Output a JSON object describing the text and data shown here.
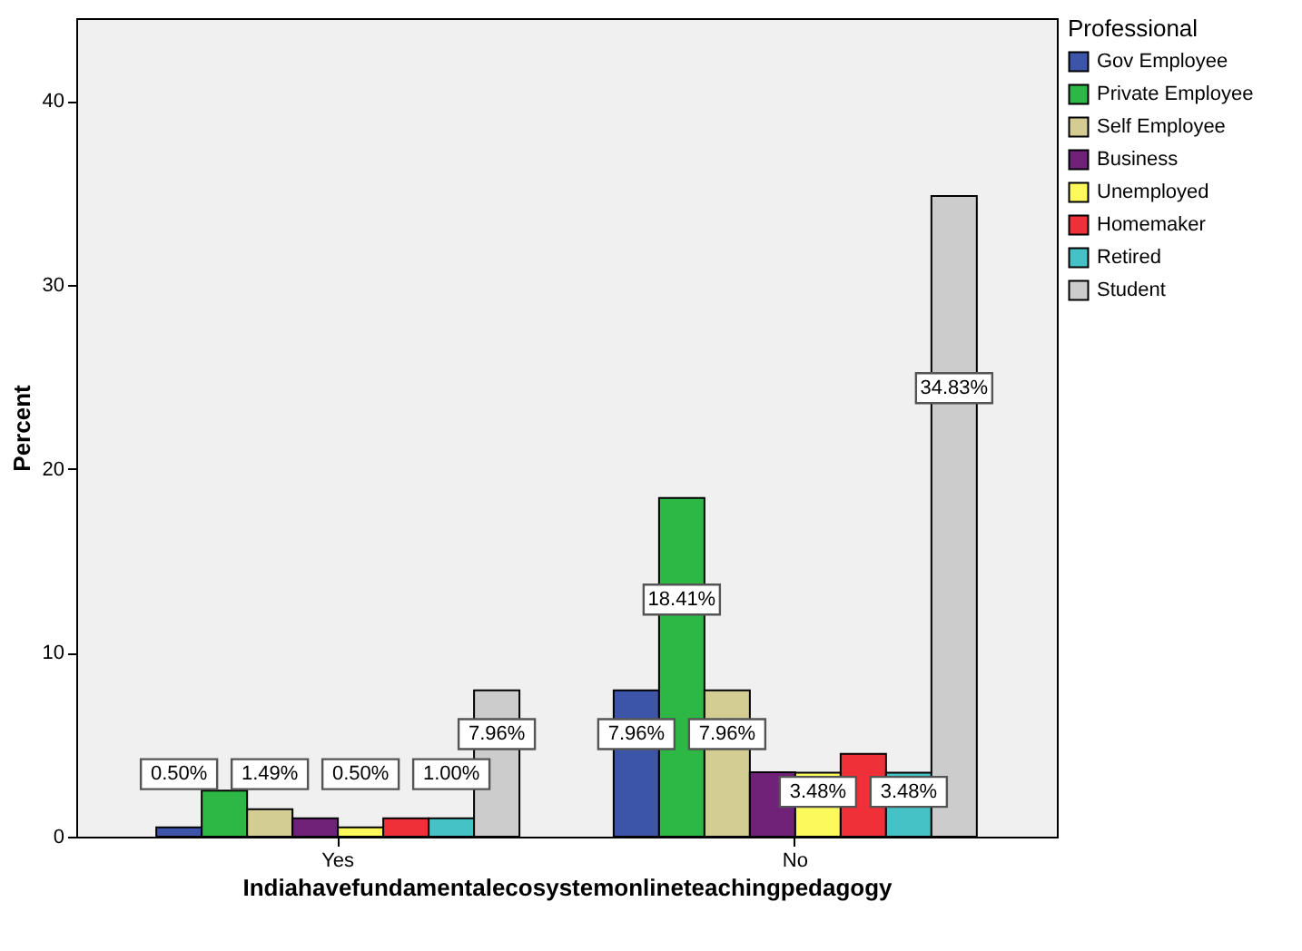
{
  "chart_data": {
    "type": "bar",
    "xlabel": "Indiahavefundamentalecosystemonlineteachingpedagogy",
    "ylabel": "Percent",
    "legend_title": "Professional",
    "categories": [
      "Yes",
      "No"
    ],
    "series": [
      {
        "name": "Gov  Employee",
        "color": "#3d55a8",
        "values": [
          0.5,
          7.96
        ],
        "value_labels": [
          "0.50%",
          "7.96%"
        ]
      },
      {
        "name": "Private Employee",
        "color": "#2db745",
        "values": [
          2.5,
          18.41
        ],
        "value_labels": [
          null,
          "18.41%"
        ]
      },
      {
        "name": "Self Employee",
        "color": "#d3cd94",
        "values": [
          1.49,
          7.96
        ],
        "value_labels": [
          "1.49%",
          "7.96%"
        ]
      },
      {
        "name": "Business",
        "color": "#6f2277",
        "values": [
          1.0,
          3.5
        ],
        "value_labels": [
          null,
          null
        ]
      },
      {
        "name": "Unemployed",
        "color": "#fbf95c",
        "values": [
          0.5,
          3.48
        ],
        "value_labels": [
          "0.50%",
          "3.48%"
        ]
      },
      {
        "name": "Homemaker",
        "color": "#ef3038",
        "values": [
          1.0,
          4.5
        ],
        "value_labels": [
          null,
          null
        ]
      },
      {
        "name": "Retired",
        "color": "#45c2c6",
        "values": [
          1.0,
          3.48
        ],
        "value_labels": [
          "1.00%",
          "3.48%"
        ]
      },
      {
        "name": "Student",
        "color": "#cccccc",
        "values": [
          7.96,
          34.83
        ],
        "value_labels": [
          "7.96%",
          "34.83%"
        ]
      }
    ],
    "ylim": [
      0,
      44.5
    ],
    "yticks": [
      0,
      10,
      20,
      30,
      40
    ],
    "grid": false,
    "legend": "top right"
  }
}
